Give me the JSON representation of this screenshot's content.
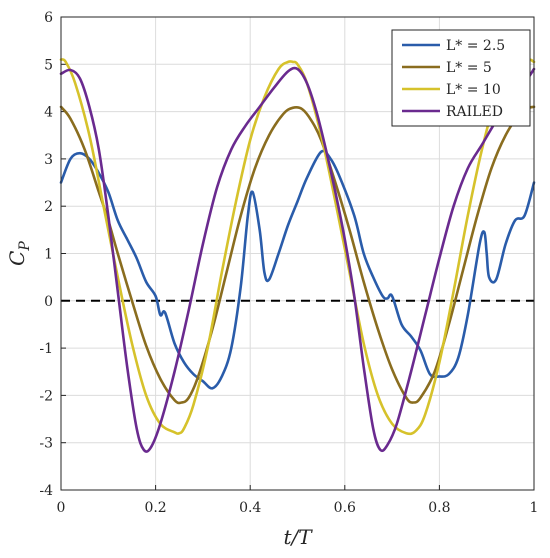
{
  "chart_data": {
    "type": "line",
    "xlabel": "t/T",
    "ylabel": "C_P",
    "xlim": [
      0,
      1
    ],
    "ylim": [
      -4,
      6
    ],
    "xticks": [
      "0",
      "0.2",
      "0.4",
      "0.6",
      "0.8",
      "1"
    ],
    "yticks": [
      "-4",
      "-3",
      "-2",
      "-1",
      "0",
      "1",
      "2",
      "3",
      "4",
      "5",
      "6"
    ],
    "grid": true,
    "legend_position": "top-right",
    "reference_line": {
      "y": 0,
      "style": "dashed",
      "color": "#000000"
    },
    "series": [
      {
        "name": "L* = 2.5",
        "color": "#2a5caa",
        "x": [
          0,
          0.02,
          0.04,
          0.06,
          0.08,
          0.1,
          0.12,
          0.14,
          0.16,
          0.18,
          0.2,
          0.21,
          0.22,
          0.24,
          0.26,
          0.28,
          0.3,
          0.32,
          0.34,
          0.36,
          0.38,
          0.395,
          0.405,
          0.42,
          0.43,
          0.44,
          0.46,
          0.48,
          0.5,
          0.52,
          0.55,
          0.57,
          0.59,
          0.62,
          0.64,
          0.66,
          0.68,
          0.69,
          0.7,
          0.72,
          0.74,
          0.76,
          0.78,
          0.8,
          0.82,
          0.84,
          0.86,
          0.885,
          0.895,
          0.9,
          0.905,
          0.92,
          0.94,
          0.96,
          0.98,
          1.0
        ],
        "y": [
          2.5,
          3.0,
          3.12,
          3.0,
          2.7,
          2.3,
          1.7,
          1.3,
          0.9,
          0.4,
          0.1,
          -0.3,
          -0.25,
          -0.9,
          -1.3,
          -1.55,
          -1.7,
          -1.85,
          -1.6,
          -1.0,
          0.3,
          1.8,
          2.3,
          1.5,
          0.6,
          0.45,
          1.0,
          1.6,
          2.1,
          2.6,
          3.15,
          3.0,
          2.6,
          1.8,
          1.0,
          0.5,
          0.1,
          0.05,
          0.1,
          -0.5,
          -0.75,
          -1.05,
          -1.55,
          -1.6,
          -1.55,
          -1.2,
          -0.3,
          1.2,
          1.45,
          1.0,
          0.5,
          0.45,
          1.2,
          1.7,
          1.8,
          2.5
        ]
      },
      {
        "name": "L* = 5",
        "color": "#8a6d1f",
        "x": [
          0,
          0.02,
          0.05,
          0.08,
          0.1,
          0.12,
          0.15,
          0.18,
          0.21,
          0.24,
          0.255,
          0.27,
          0.29,
          0.32,
          0.35,
          0.38,
          0.41,
          0.44,
          0.47,
          0.49,
          0.51,
          0.53,
          0.55,
          0.58,
          0.61,
          0.64,
          0.67,
          0.7,
          0.73,
          0.745,
          0.76,
          0.79,
          0.82,
          0.85,
          0.88,
          0.91,
          0.94,
          0.97,
          0.99,
          1.0
        ],
        "y": [
          4.1,
          3.85,
          3.2,
          2.3,
          1.7,
          1.0,
          0.0,
          -0.95,
          -1.65,
          -2.1,
          -2.15,
          -2.05,
          -1.6,
          -0.6,
          0.6,
          1.8,
          2.8,
          3.5,
          3.95,
          4.08,
          4.05,
          3.8,
          3.4,
          2.5,
          1.5,
          0.4,
          -0.6,
          -1.45,
          -2.05,
          -2.15,
          -2.05,
          -1.5,
          -0.5,
          0.65,
          1.8,
          2.8,
          3.5,
          3.95,
          4.08,
          4.1
        ]
      },
      {
        "name": "L* = 10",
        "color": "#d6c22b",
        "x": [
          0,
          0.01,
          0.03,
          0.06,
          0.09,
          0.12,
          0.15,
          0.18,
          0.21,
          0.24,
          0.25,
          0.26,
          0.28,
          0.31,
          0.34,
          0.37,
          0.4,
          0.43,
          0.46,
          0.48,
          0.49,
          0.5,
          0.52,
          0.55,
          0.58,
          0.61,
          0.64,
          0.67,
          0.7,
          0.73,
          0.75,
          0.77,
          0.8,
          0.83,
          0.86,
          0.89,
          0.92,
          0.95,
          0.97,
          0.99,
          1.0
        ],
        "y": [
          5.1,
          5.05,
          4.6,
          3.5,
          2.0,
          0.5,
          -0.9,
          -2.0,
          -2.6,
          -2.78,
          -2.8,
          -2.7,
          -2.2,
          -1.0,
          0.6,
          2.1,
          3.4,
          4.3,
          4.9,
          5.05,
          5.05,
          5.0,
          4.6,
          3.5,
          2.1,
          0.6,
          -0.9,
          -2.0,
          -2.6,
          -2.8,
          -2.75,
          -2.4,
          -1.3,
          0.2,
          1.8,
          3.2,
          4.3,
          4.9,
          5.05,
          5.1,
          5.05
        ]
      },
      {
        "name": "RAILED",
        "color": "#6a2a8f",
        "x": [
          0,
          0.02,
          0.04,
          0.06,
          0.08,
          0.1,
          0.12,
          0.14,
          0.16,
          0.175,
          0.19,
          0.21,
          0.24,
          0.27,
          0.3,
          0.33,
          0.36,
          0.39,
          0.42,
          0.45,
          0.48,
          0.5,
          0.52,
          0.54,
          0.56,
          0.58,
          0.6,
          0.62,
          0.64,
          0.66,
          0.675,
          0.69,
          0.71,
          0.74,
          0.77,
          0.8,
          0.83,
          0.86,
          0.89,
          0.92,
          0.95,
          0.98,
          1.0
        ],
        "y": [
          4.8,
          4.88,
          4.7,
          4.1,
          3.2,
          1.8,
          0.2,
          -1.4,
          -2.7,
          -3.15,
          -3.1,
          -2.6,
          -1.5,
          -0.2,
          1.2,
          2.4,
          3.2,
          3.7,
          4.1,
          4.5,
          4.85,
          4.9,
          4.6,
          4.0,
          3.2,
          2.3,
          1.3,
          0.1,
          -1.4,
          -2.7,
          -3.15,
          -3.05,
          -2.6,
          -1.5,
          -0.3,
          0.9,
          2.0,
          2.8,
          3.3,
          3.8,
          4.2,
          4.6,
          4.9
        ]
      }
    ]
  }
}
